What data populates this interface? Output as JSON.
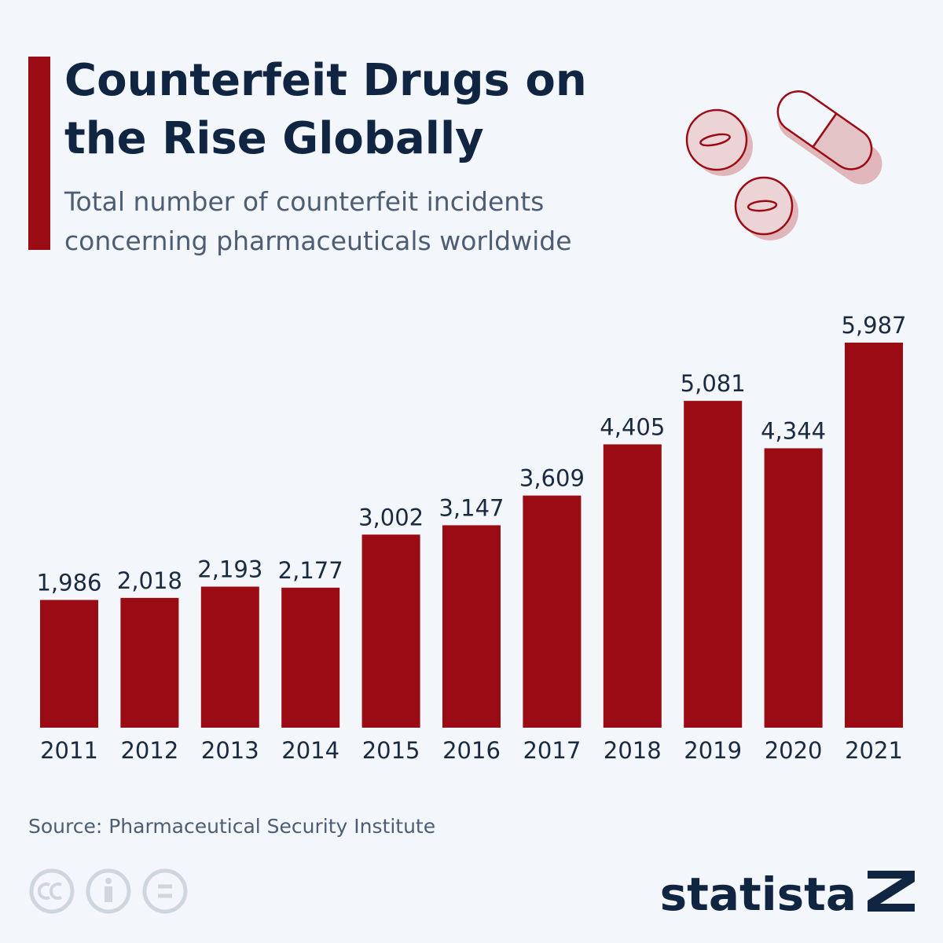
{
  "chart_data": {
    "type": "bar",
    "title": "Counterfeit Drugs on the Rise Globally",
    "subtitle": "Total number of counterfeit incidents concerning pharmaceuticals worldwide",
    "categories": [
      "2011",
      "2012",
      "2013",
      "2014",
      "2015",
      "2016",
      "2017",
      "2018",
      "2019",
      "2020",
      "2021"
    ],
    "values": [
      1986,
      2018,
      2193,
      2177,
      3002,
      3147,
      3609,
      4405,
      5081,
      4344,
      5987
    ],
    "value_labels": [
      "1,986",
      "2,018",
      "2,193",
      "2,177",
      "3,002",
      "3,147",
      "3,609",
      "4,405",
      "5,081",
      "4,344",
      "5,987"
    ],
    "color": "#9b0b13",
    "source": "Source: Pharmaceutical Security Institute",
    "brand": "statista"
  }
}
